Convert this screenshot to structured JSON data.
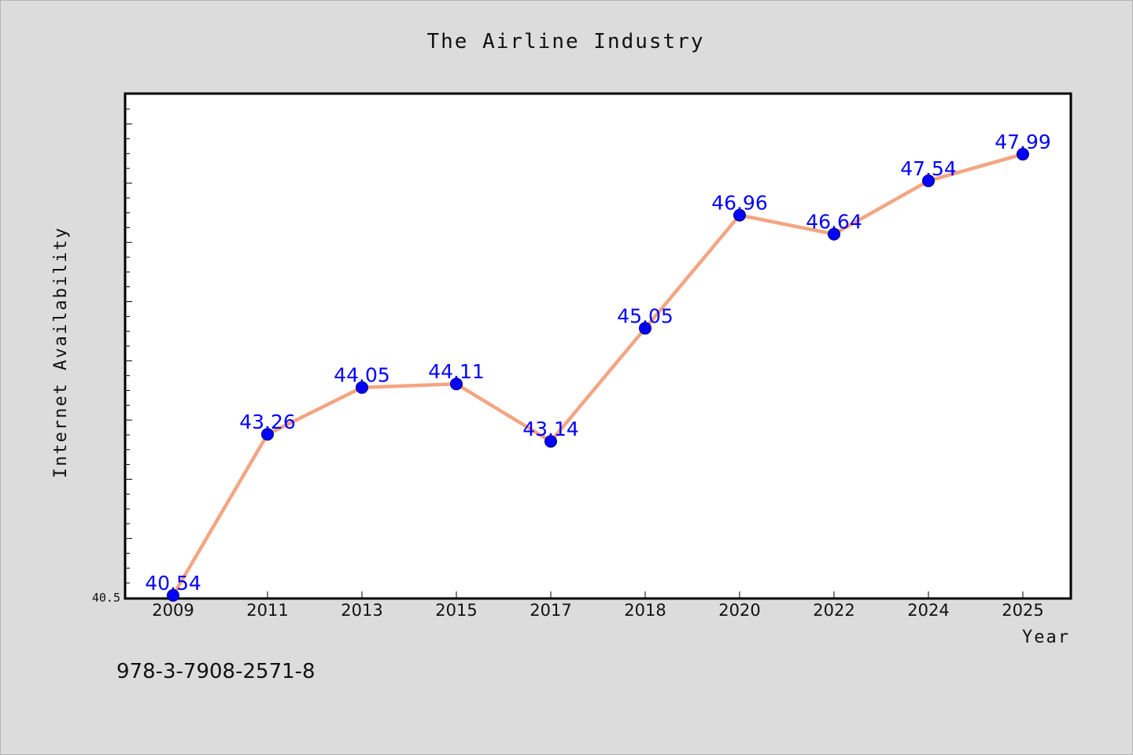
{
  "chart_data": {
    "type": "line",
    "title": "The Airline Industry",
    "xlabel": "Year",
    "ylabel": "Internet Availability",
    "categories": [
      "2009",
      "2011",
      "2013",
      "2015",
      "2017",
      "2018",
      "2020",
      "2022",
      "2024",
      "2025"
    ],
    "series": [
      {
        "values": [
          40.54,
          43.26,
          44.05,
          44.11,
          43.14,
          45.05,
          46.96,
          46.64,
          47.54,
          47.99
        ],
        "data_labels": [
          "40.54",
          "43.26",
          "44.05",
          "44.11",
          "43.14",
          "45.05",
          "46.96",
          "46.64",
          "47.54",
          "47.99"
        ]
      }
    ],
    "ylim": [
      40.5,
      49.0
    ],
    "y_tick_labels": [
      "40.5"
    ],
    "grid": false,
    "legend": "none",
    "colors": {
      "line": "#f4a582",
      "marker": "#0000ff",
      "data_label": "#0000ff",
      "plot_background": "#ffffff",
      "page_background": "#dcdcdc"
    }
  },
  "footnote": "978-3-7908-2571-8"
}
